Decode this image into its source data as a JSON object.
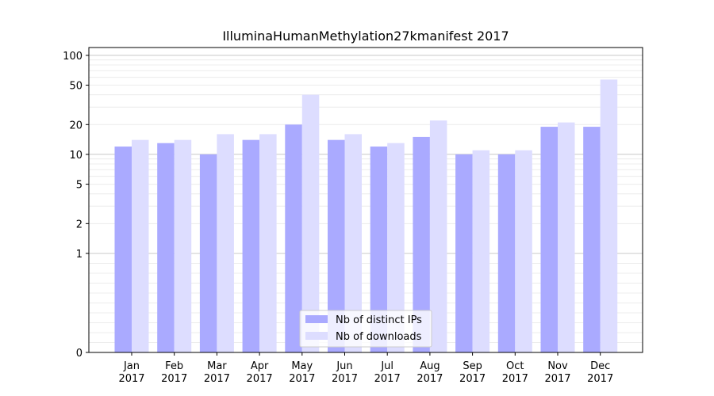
{
  "chart_data": {
    "type": "bar",
    "title": "IlluminaHumanMethylation27kmanifest 2017",
    "xlabel": "",
    "ylabel": "",
    "categories": [
      [
        "Jan",
        "2017"
      ],
      [
        "Feb",
        "2017"
      ],
      [
        "Mar",
        "2017"
      ],
      [
        "Apr",
        "2017"
      ],
      [
        "May",
        "2017"
      ],
      [
        "Jun",
        "2017"
      ],
      [
        "Jul",
        "2017"
      ],
      [
        "Aug",
        "2017"
      ],
      [
        "Sep",
        "2017"
      ],
      [
        "Oct",
        "2017"
      ],
      [
        "Nov",
        "2017"
      ],
      [
        "Dec",
        "2017"
      ]
    ],
    "series": [
      {
        "name": "Nb of distinct IPs",
        "color": "#aaaaff",
        "values": [
          12,
          13,
          10,
          14,
          20,
          14,
          12,
          15,
          10,
          10,
          19,
          19
        ]
      },
      {
        "name": "Nb of downloads",
        "color": "#ddddff",
        "values": [
          14,
          14,
          16,
          16,
          40,
          16,
          13,
          22,
          11,
          11,
          21,
          57
        ]
      }
    ],
    "yscale": "symlog",
    "ylim": [
      0,
      120
    ],
    "yticks": [
      0,
      1,
      2,
      5,
      10,
      20,
      50,
      100
    ],
    "ytick_labels": [
      "0",
      "1",
      "2",
      "5",
      "10",
      "20",
      "50",
      "100"
    ],
    "grid": true,
    "legend": "lower-center"
  }
}
